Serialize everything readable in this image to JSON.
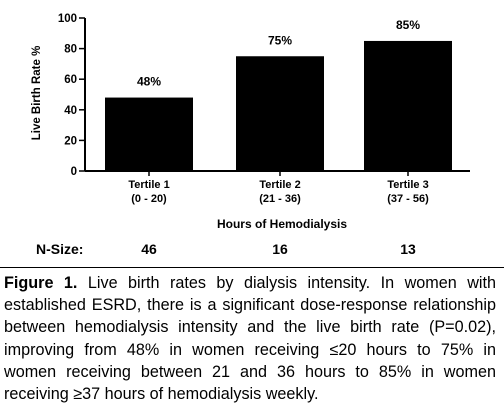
{
  "chart_data": {
    "type": "bar",
    "categories": [
      "Tertile 1",
      "Tertile 2",
      "Tertile 3"
    ],
    "category_ranges": [
      "(0 - 20)",
      "(21 - 36)",
      "(37 - 56)"
    ],
    "values": [
      48,
      75,
      85
    ],
    "data_labels": [
      "48%",
      "75%",
      "85%"
    ],
    "ylabel": "Live Birth Rate %",
    "xlabel": "Hours of Hemodialysis",
    "ylim": [
      0,
      100
    ],
    "yticks": [
      0,
      20,
      40,
      60,
      80,
      100
    ],
    "grid": false,
    "bar_color": "#000000"
  },
  "nsize": {
    "label": "N-Size:",
    "values": [
      "46",
      "16",
      "13"
    ]
  },
  "caption": {
    "label": "Figure 1.",
    "text": " Live birth rates by dialysis intensity. In women with established ESRD, there is a significant dose-response relationship between hemodialysis intensity and the live birth rate (P=0.02), improving from 48% in women receiving ≤20 hours to 75% in women receiving between 21 and 36 hours to 85% in women receiving ≥37 hours of hemodialysis weekly."
  }
}
